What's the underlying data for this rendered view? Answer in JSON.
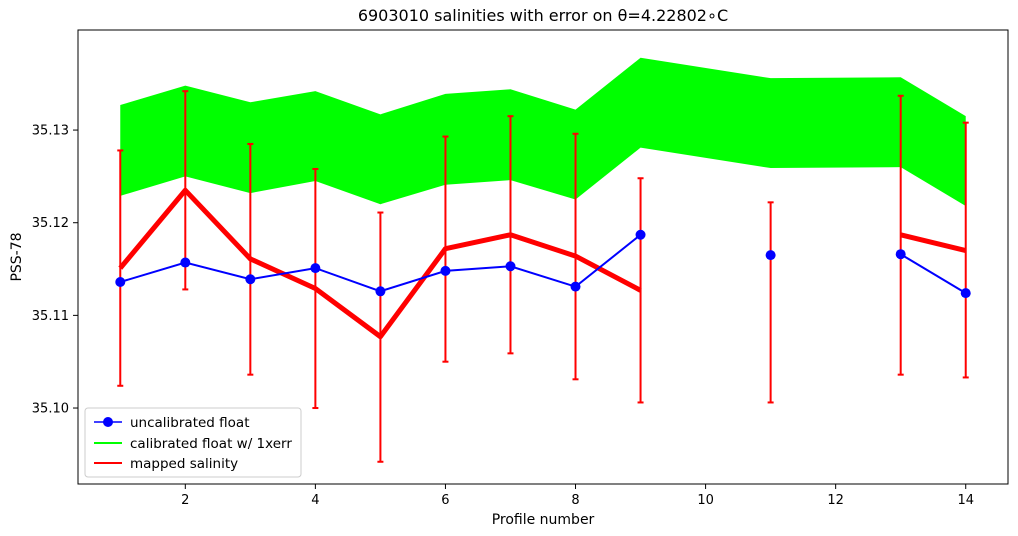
{
  "chart_data": {
    "type": "line",
    "title": "6903010 salinities with error on θ=4.22802∘C",
    "xlabel": "Profile number",
    "ylabel": "PSS-78",
    "xlim": [
      0.35,
      14.65
    ],
    "ylim": [
      35.0918,
      35.1408
    ],
    "xticks": [
      2,
      4,
      6,
      8,
      10,
      12,
      14
    ],
    "yticks": [
      35.1,
      35.11,
      35.12,
      35.13
    ],
    "ytick_labels": [
      "35.10",
      "35.11",
      "35.12",
      "35.13"
    ],
    "grid": false,
    "legend_position": "lower-left",
    "series": [
      {
        "name": "uncalibrated float",
        "kind": "line-markers",
        "color": "#0000ff",
        "x": [
          1,
          2,
          3,
          4,
          5,
          6,
          7,
          8,
          9,
          10,
          11,
          12,
          13,
          14
        ],
        "values": [
          35.1136,
          35.1157,
          35.1139,
          35.1151,
          35.1126,
          35.1148,
          35.1153,
          35.1131,
          35.1187,
          null,
          35.1165,
          null,
          35.1166,
          35.1124
        ]
      },
      {
        "name": "calibrated float w/ 1xerr",
        "kind": "band",
        "color": "#00ff00",
        "x": [
          1,
          2,
          3,
          4,
          5,
          6,
          7,
          8,
          9,
          11,
          13,
          14
        ],
        "lower": [
          35.1229,
          35.125,
          35.1232,
          35.1245,
          35.122,
          35.1241,
          35.1246,
          35.1225,
          35.1281,
          35.1259,
          35.126,
          35.1218
        ],
        "upper": [
          35.1327,
          35.1348,
          35.133,
          35.1342,
          35.1317,
          35.1339,
          35.1344,
          35.1322,
          35.1378,
          35.1356,
          35.1357,
          35.1315
        ]
      },
      {
        "name": "mapped salinity",
        "kind": "line-errorbars",
        "color": "#ff0000",
        "x": [
          1,
          2,
          3,
          4,
          5,
          6,
          7,
          8,
          9,
          10,
          11,
          12,
          13,
          14
        ],
        "values": [
          35.1151,
          35.1235,
          35.1161,
          35.1129,
          35.1077,
          35.1172,
          35.1187,
          35.1164,
          35.1127,
          null,
          35.1164,
          null,
          35.1187,
          35.117
        ],
        "err_lower": [
          35.1024,
          35.1128,
          35.1036,
          35.1,
          35.0942,
          35.105,
          35.1059,
          35.1031,
          35.1006,
          null,
          35.1006,
          null,
          35.1036,
          35.1033
        ],
        "err_upper": [
          35.1278,
          35.1342,
          35.1285,
          35.1258,
          35.1211,
          35.1293,
          35.1315,
          35.1296,
          35.1248,
          null,
          35.1222,
          null,
          35.1337,
          35.1308
        ]
      }
    ]
  }
}
